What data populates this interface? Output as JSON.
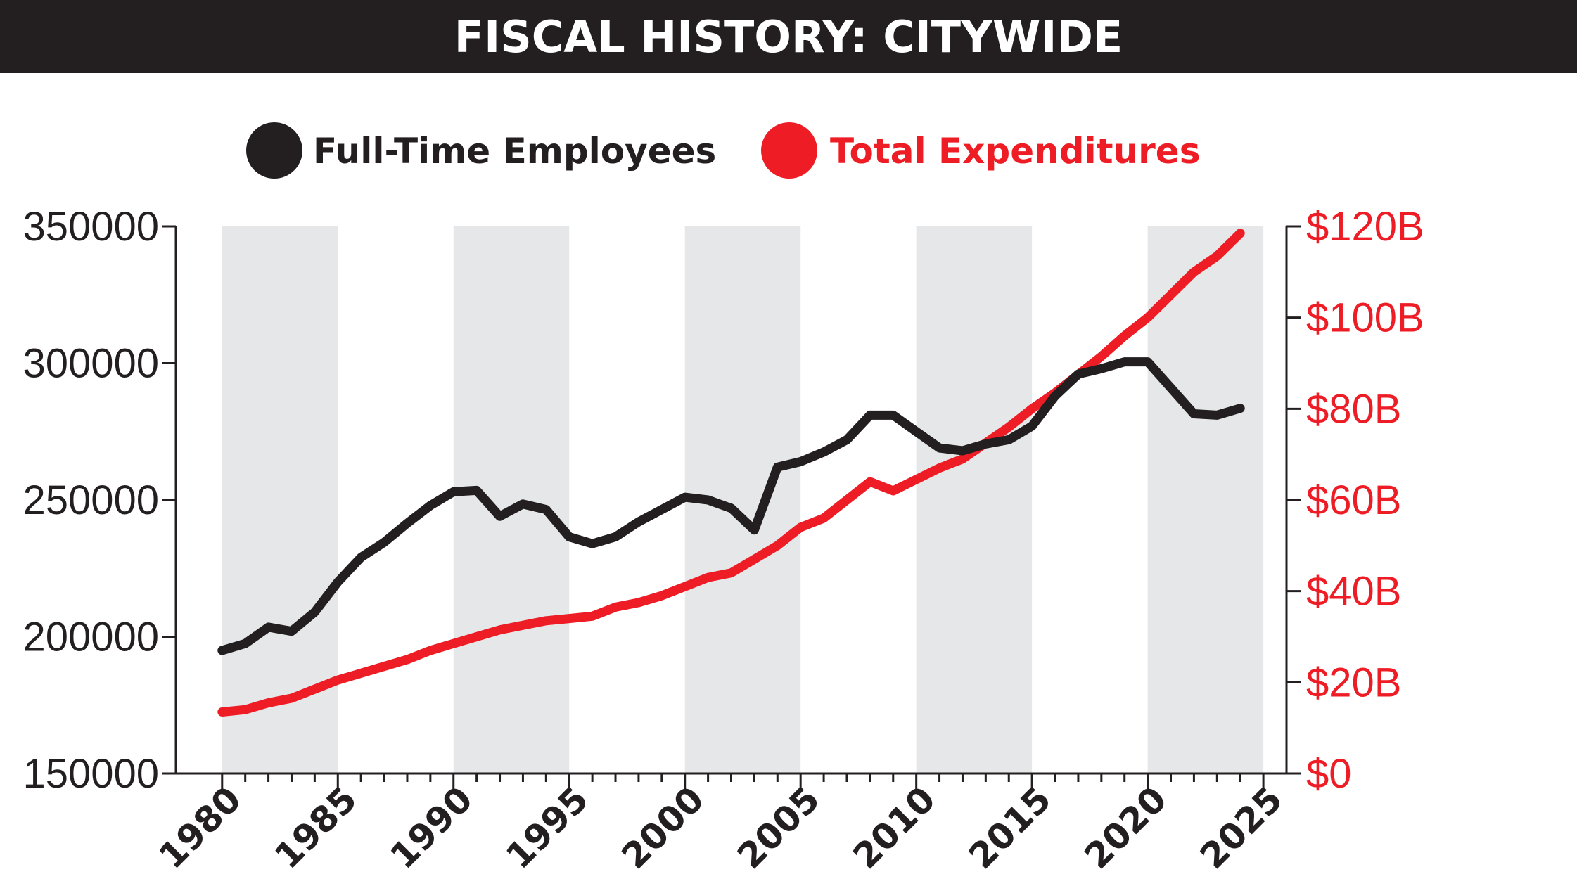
{
  "title": "FISCAL HISTORY: CITYWIDE",
  "colors": {
    "employees": "#231f20",
    "expenditures": "#ee1c25",
    "band": "#e6e7e8",
    "title_bg": "#231f20"
  },
  "legend": [
    {
      "key": "employees",
      "label": "Full-Time Employees"
    },
    {
      "key": "expenditures",
      "label": "Total Expenditures"
    }
  ],
  "chart_data": {
    "type": "line",
    "title": "FISCAL HISTORY: CITYWIDE",
    "xlabel": "",
    "ylabel_left": "",
    "ylabel_right": "",
    "grid": false,
    "legend_position": "top",
    "xlim": [
      1978,
      2026
    ],
    "x_ticks": [
      "1980",
      "1985",
      "1990",
      "1995",
      "2000",
      "2005",
      "2010",
      "2015",
      "2020",
      "2025"
    ],
    "shaded_bands": [
      [
        1980,
        1985
      ],
      [
        1990,
        1995
      ],
      [
        2000,
        2005
      ],
      [
        2010,
        2015
      ],
      [
        2020,
        2025
      ]
    ],
    "y_left": {
      "ylim": [
        150000,
        350000
      ],
      "ticks": [
        "150000",
        "200000",
        "250000",
        "300000",
        "350000"
      ]
    },
    "y_right": {
      "ylim": [
        0,
        120
      ],
      "unit": "billions of dollars",
      "ticks": [
        "$0",
        "$20B",
        "$40B",
        "$60B",
        "$80B",
        "$100B",
        "$120B"
      ]
    },
    "series": [
      {
        "name": "Full-Time Employees",
        "axis": "left",
        "x": [
          1980,
          1981,
          1982,
          1983,
          1984,
          1985,
          1986,
          1987,
          1988,
          1989,
          1990,
          1991,
          1992,
          1993,
          1994,
          1995,
          1996,
          1997,
          1998,
          1999,
          2000,
          2001,
          2002,
          2003,
          2004,
          2005,
          2006,
          2007,
          2008,
          2009,
          2010,
          2011,
          2012,
          2013,
          2014,
          2015,
          2016,
          2017,
          2018,
          2019,
          2020,
          2021,
          2022,
          2023,
          2024
        ],
        "values": [
          195000,
          197500,
          203500,
          202000,
          209000,
          220000,
          229000,
          234500,
          241500,
          248000,
          253000,
          253500,
          244000,
          248500,
          246500,
          236500,
          234000,
          236500,
          242000,
          246500,
          251000,
          250000,
          247000,
          239000,
          262000,
          264000,
          267500,
          272000,
          281000,
          281000,
          275000,
          269000,
          268000,
          270500,
          272000,
          277000,
          288000,
          296000,
          298000,
          300500,
          300500,
          291000,
          281500,
          281000,
          283500
        ]
      },
      {
        "name": "Total Expenditures",
        "axis": "right",
        "x": [
          1980,
          1981,
          1982,
          1983,
          1984,
          1985,
          1986,
          1987,
          1988,
          1989,
          1990,
          1991,
          1992,
          1993,
          1994,
          1995,
          1996,
          1997,
          1998,
          1999,
          2000,
          2001,
          2002,
          2003,
          2004,
          2005,
          2006,
          2007,
          2008,
          2009,
          2010,
          2011,
          2012,
          2013,
          2014,
          2015,
          2016,
          2017,
          2018,
          2019,
          2020,
          2021,
          2022,
          2023,
          2024
        ],
        "values": [
          13.5,
          14,
          15.5,
          16.5,
          18.5,
          20.5,
          22,
          23.5,
          25,
          27,
          28.5,
          30,
          31.5,
          32.5,
          33.5,
          34,
          34.5,
          36.5,
          37.5,
          39,
          41,
          43,
          44,
          47,
          50,
          54,
          56,
          60,
          64,
          62,
          64.5,
          67,
          69,
          72.5,
          76,
          80,
          83.5,
          87.5,
          91.5,
          96,
          100,
          105,
          110,
          113.5,
          118.5
        ]
      }
    ]
  }
}
